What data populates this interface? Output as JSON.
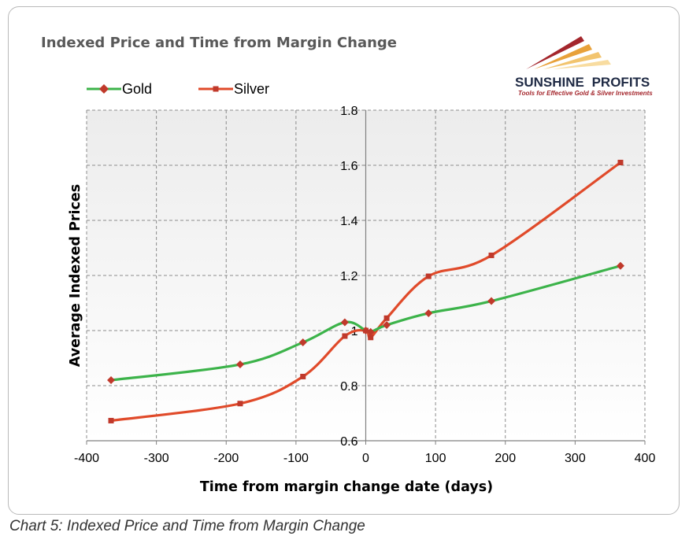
{
  "caption": "Chart 5: Indexed Price and Time from Margin Change",
  "logo": {
    "name_part1": "SUNSHINE",
    "name_part2": "PROFITS",
    "tagline": "Tools for Effective Gold & Silver Investments",
    "colors": {
      "dark": "#1f2a44",
      "red": "#a4262c",
      "orange": "#e8a13a"
    }
  },
  "chart_data": {
    "type": "line",
    "title": "Indexed Price and Time from Margin Change",
    "xlabel": "Time from margin change date (days)",
    "ylabel": "Average Indexed Prices",
    "xlim": [
      -400,
      400
    ],
    "ylim": [
      0.6,
      1.8
    ],
    "xticks": [
      -400,
      -300,
      -200,
      -100,
      0,
      100,
      200,
      300,
      400
    ],
    "yticks": [
      0.6,
      0.8,
      1,
      1.2,
      1.4,
      1.6,
      1.8
    ],
    "grid": true,
    "legend_position": "top-left",
    "series": [
      {
        "name": "Gold",
        "color": "#3cb34a",
        "marker": "diamond",
        "marker_color": "#c0392b",
        "points": [
          {
            "x": -365,
            "y": 0.82
          },
          {
            "x": -180,
            "y": 0.877
          },
          {
            "x": -90,
            "y": 0.957
          },
          {
            "x": -30,
            "y": 1.03
          },
          {
            "x": 0,
            "y": 1.0
          },
          {
            "x": 7,
            "y": 0.995
          },
          {
            "x": 30,
            "y": 1.02
          },
          {
            "x": 90,
            "y": 1.063
          },
          {
            "x": 180,
            "y": 1.107
          },
          {
            "x": 365,
            "y": 1.235
          }
        ]
      },
      {
        "name": "Silver",
        "color": "#e04a2a",
        "marker": "square",
        "marker_color": "#c0392b",
        "points": [
          {
            "x": -365,
            "y": 0.673
          },
          {
            "x": -180,
            "y": 0.735
          },
          {
            "x": -90,
            "y": 0.833
          },
          {
            "x": -30,
            "y": 0.98
          },
          {
            "x": 0,
            "y": 1.0
          },
          {
            "x": 7,
            "y": 0.975
          },
          {
            "x": 30,
            "y": 1.045
          },
          {
            "x": 90,
            "y": 1.197
          },
          {
            "x": 180,
            "y": 1.273
          },
          {
            "x": 365,
            "y": 1.61
          }
        ]
      }
    ]
  }
}
